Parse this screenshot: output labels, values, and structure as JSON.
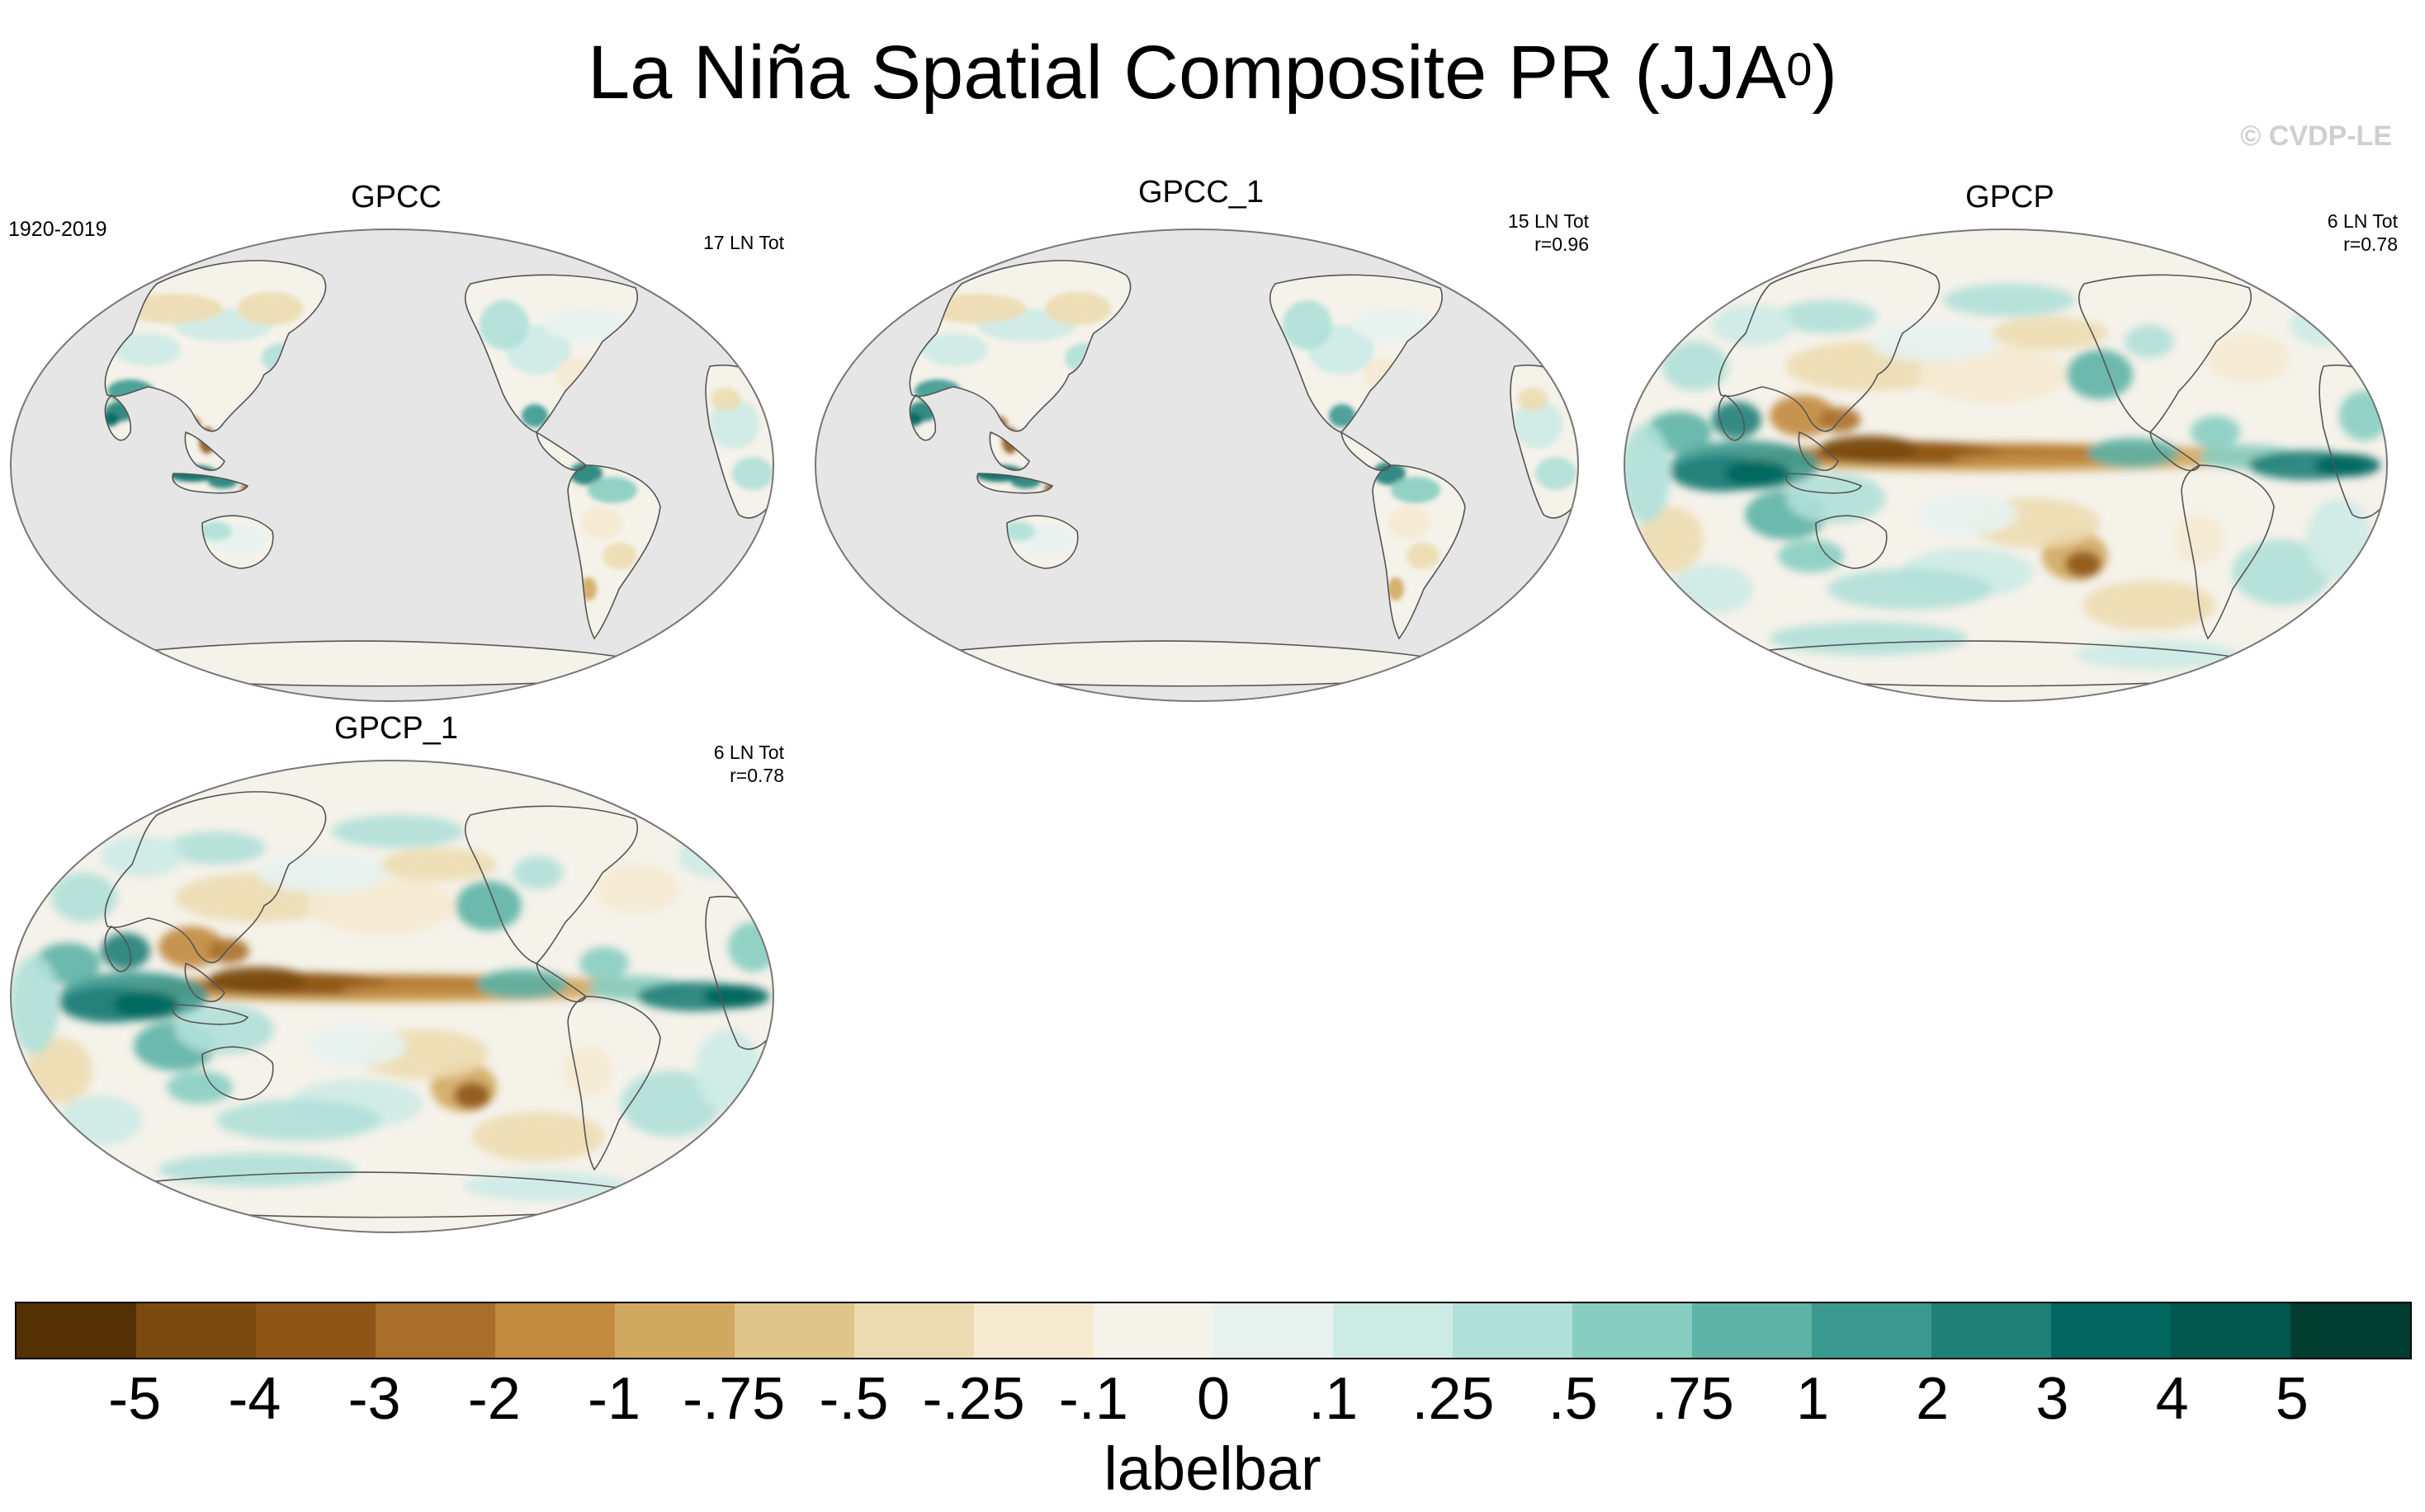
{
  "title_main": "La Niña Spatial Composite PR (JJA",
  "title_sup": "0",
  "title_end": ")",
  "copyright": "© CVDP-LE",
  "panels": [
    {
      "title": "GPCC",
      "years": "1920-2019",
      "info": "17 LN Tot",
      "type": "land"
    },
    {
      "title": "GPCC_1",
      "years": "",
      "info": "15 LN Tot\nr=0.96",
      "type": "land"
    },
    {
      "title": "GPCP",
      "years": "",
      "info": "6 LN Tot\nr=0.78",
      "type": "global"
    },
    {
      "title": "GPCP_1",
      "years": "",
      "info": "6 LN Tot\nr=0.78",
      "type": "global"
    }
  ],
  "colorbar": {
    "colors": [
      "#543005",
      "#7a4a11",
      "#8f5516",
      "#a86e2a",
      "#c18a3f",
      "#d1a85f",
      "#e0c58b",
      "#ecdbb0",
      "#f5ead0",
      "#f5f2ea",
      "#e7f2ef",
      "#cdebe5",
      "#b0e0d8",
      "#87cec1",
      "#5db3a6",
      "#3b9990",
      "#1f8078",
      "#01665e",
      "#01564e",
      "#003c30"
    ],
    "labels": [
      "-5",
      "-4",
      "-3",
      "-2",
      "-1",
      "-.75",
      "-.5",
      "-.25",
      "-.1",
      "0",
      ".1",
      ".25",
      ".5",
      ".75",
      "1",
      "2",
      "3",
      "4",
      "5"
    ],
    "title": "labelbar"
  },
  "map_colors": {
    "ocean_missing": "#e6e6e6",
    "outline": "#555555"
  }
}
